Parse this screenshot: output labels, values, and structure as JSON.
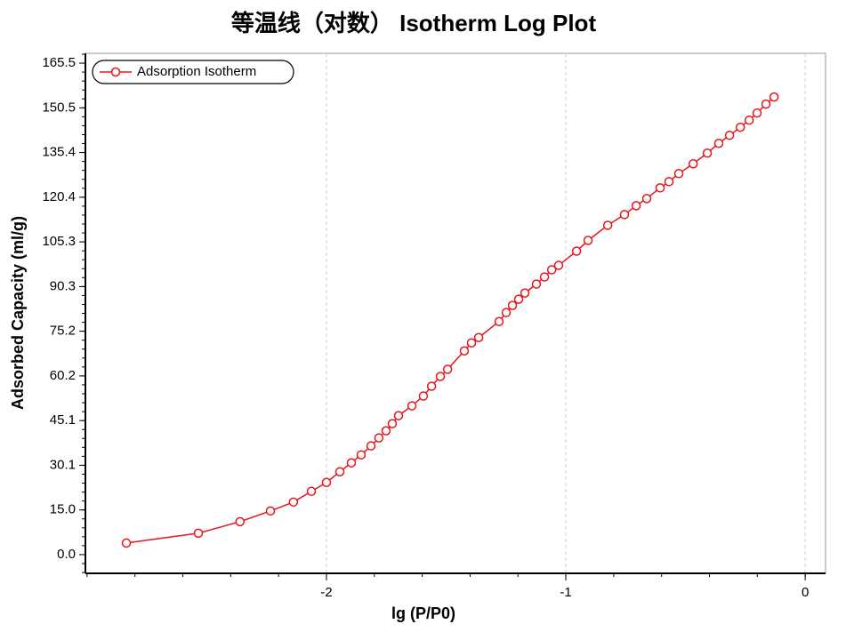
{
  "chart_data": {
    "type": "line",
    "title": "等温线（对数） Isotherm Log Plot",
    "xlabel": "lg (P/P0)",
    "ylabel": "Adsorbed Capacity (ml/g)",
    "xlim": [
      -3.007,
      0.085
    ],
    "ylim": [
      -6.3,
      168.8
    ],
    "xticks": [
      -2,
      -1,
      0
    ],
    "yticks": [
      {
        "value": 0,
        "label": "0.0"
      },
      {
        "value": 15.045,
        "label": "15.0"
      },
      {
        "value": 30.09,
        "label": "30.1"
      },
      {
        "value": 45.136,
        "label": "45.1"
      },
      {
        "value": 60.18,
        "label": "60.2"
      },
      {
        "value": 75.23,
        "label": "75.2"
      },
      {
        "value": 90.27,
        "label": "90.3"
      },
      {
        "value": 105.32,
        "label": "105.3"
      },
      {
        "value": 120.36,
        "label": "120.4"
      },
      {
        "value": 135.41,
        "label": "135.4"
      },
      {
        "value": 150.455,
        "label": "150.5"
      },
      {
        "value": 165.5,
        "label": "165.5"
      }
    ],
    "xgrid": true,
    "legend": "top-left",
    "series": [
      {
        "name": "Adsorption Isotherm",
        "color": "#e8141c",
        "x": [
          -2.836,
          -2.535,
          -2.361,
          -2.234,
          -2.138,
          -2.063,
          -2.0,
          -1.944,
          -1.896,
          -1.855,
          -1.814,
          -1.781,
          -1.751,
          -1.725,
          -1.699,
          -1.643,
          -1.595,
          -1.561,
          -1.524,
          -1.494,
          -1.424,
          -1.394,
          -1.364,
          -1.279,
          -1.249,
          -1.223,
          -1.197,
          -1.171,
          -1.123,
          -1.089,
          -1.059,
          -1.03,
          -0.955,
          -0.907,
          -0.825,
          -0.755,
          -0.706,
          -0.662,
          -0.606,
          -0.569,
          -0.528,
          -0.468,
          -0.409,
          -0.361,
          -0.316,
          -0.271,
          -0.234,
          -0.201,
          -0.164,
          -0.13
        ],
        "values": [
          3.9,
          7.2,
          11.1,
          14.7,
          17.7,
          21.3,
          24.3,
          27.9,
          30.9,
          33.6,
          36.6,
          39.3,
          41.7,
          44.1,
          46.8,
          50.1,
          53.4,
          56.7,
          60.0,
          62.4,
          68.6,
          71.3,
          73.1,
          78.5,
          81.5,
          83.9,
          86.0,
          88.1,
          91.1,
          93.5,
          95.9,
          97.4,
          102.2,
          105.8,
          110.9,
          114.5,
          117.5,
          119.9,
          123.5,
          125.6,
          128.3,
          131.6,
          135.2,
          138.5,
          141.2,
          143.9,
          146.3,
          148.7,
          151.7,
          154.1
        ]
      }
    ]
  }
}
